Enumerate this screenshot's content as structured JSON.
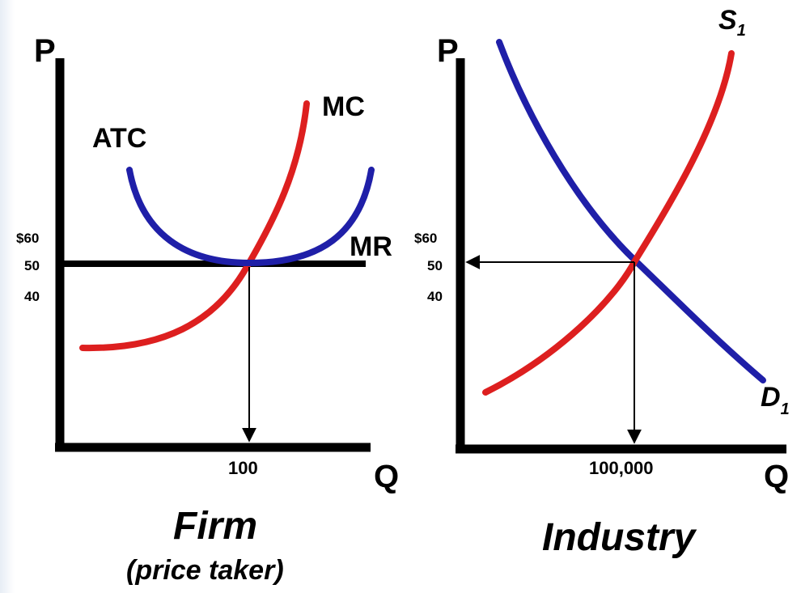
{
  "chart_data": [
    {
      "type": "line",
      "title": "Firm",
      "subtitle": "(price taker)",
      "xlabel": "Q",
      "ylabel": "P",
      "y_tick_labels": [
        "$60",
        "50",
        "40"
      ],
      "x_tick_labels": [
        "100"
      ],
      "series": [
        {
          "name": "ATC",
          "color": "#1f1fa8",
          "shape": "U-shaped, minimum at Q=100, P=50"
        },
        {
          "name": "MC",
          "color": "#dd1f1f",
          "shape": "upward sloping, crosses ATC minimum at Q=100, P=50"
        },
        {
          "name": "MR",
          "color": "#000000",
          "value": 50
        }
      ],
      "equilibrium": {
        "q": 100,
        "p": 50
      }
    },
    {
      "type": "line",
      "title": "Industry",
      "xlabel": "Q",
      "ylabel": "P",
      "y_tick_labels": [
        "$60",
        "50",
        "40"
      ],
      "x_tick_labels": [
        "100,000"
      ],
      "series": [
        {
          "name": "S",
          "subscript": "1",
          "color": "#dd1f1f",
          "shape": "upward sloping supply"
        },
        {
          "name": "D",
          "subscript": "1",
          "color": "#1f1fa8",
          "shape": "downward sloping demand"
        }
      ],
      "equilibrium": {
        "q": 100000,
        "p": 50
      }
    }
  ]
}
